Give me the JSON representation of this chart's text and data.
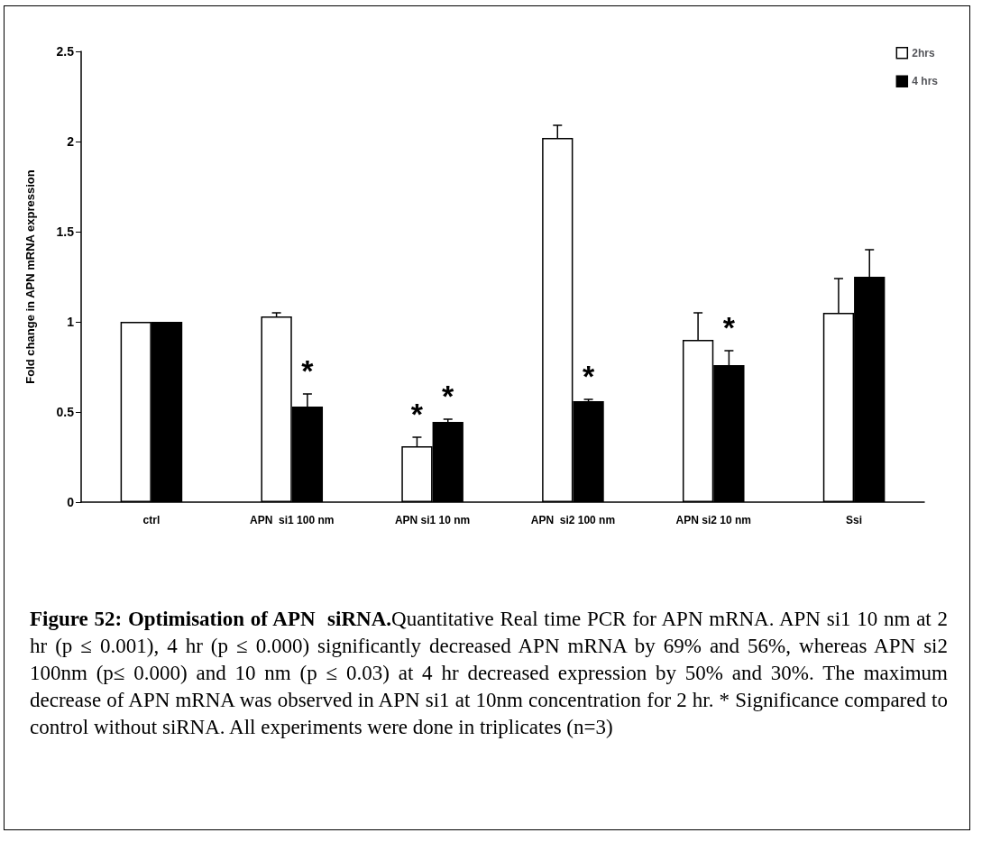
{
  "chart_data": {
    "type": "bar",
    "ylabel": "Fold change in APN mRNA expression",
    "categories": [
      "ctrl",
      "APN  si1 100 nm",
      "APN si1 10 nm",
      "APN  si2 100 nm",
      "APN si2 10 nm",
      "Ssi"
    ],
    "series": [
      {
        "name": "2hrs",
        "color": "#ffffff",
        "values": [
          1,
          1.03,
          0.31,
          2.02,
          0.9,
          1.05
        ],
        "errors": [
          null,
          0.02,
          0.05,
          0.07,
          0.15,
          0.19
        ]
      },
      {
        "name": "4 hrs",
        "color": "#000000",
        "values": [
          1,
          0.53,
          0.445,
          0.56,
          0.76,
          1.25
        ],
        "errors": [
          null,
          0.07,
          0.015,
          0.01,
          0.08,
          0.15
        ]
      }
    ],
    "ylim": [
      0,
      2.5
    ],
    "yticks": [
      0,
      0.5,
      1,
      1.5,
      2,
      2.5
    ],
    "grid": false,
    "legend": "top right",
    "annotations": [
      {
        "text": "*",
        "x": "APN  si1 100 nm",
        "y": 0.6
      },
      {
        "text": "*",
        "x": "APN si1 10 nm",
        "y": 0.36
      },
      {
        "text": "*",
        "x": "APN si1 10 nm",
        "y": 0.46
      },
      {
        "text": "*",
        "x": "APN  si2 100 nm",
        "y": 0.57
      },
      {
        "text": "*",
        "x": "APN si2 10 nm",
        "y": 0.84
      },
      "Figure 52: Optimisation of APN  siRNA.",
      "Quantitative Real time PCR for APN mRNA. APN si1 10 nm at 2 hr (p ≤ 0.001), 4 hr (p ≤ 0.000) significantly decreased APN mRNA by 69% and 56%, whereas APN si2 100nm (p≤ 0.000) and 10 nm (p ≤ 0.03) at 4 hr decreased expression by 50% and 30%. The maximum decrease of APN mRNA was observed in APN si1 at 10nm concentration for 2 hr. * Significance compared to control without siRNA. All experiments were done in triplicates (n=3)"
    ]
  }
}
